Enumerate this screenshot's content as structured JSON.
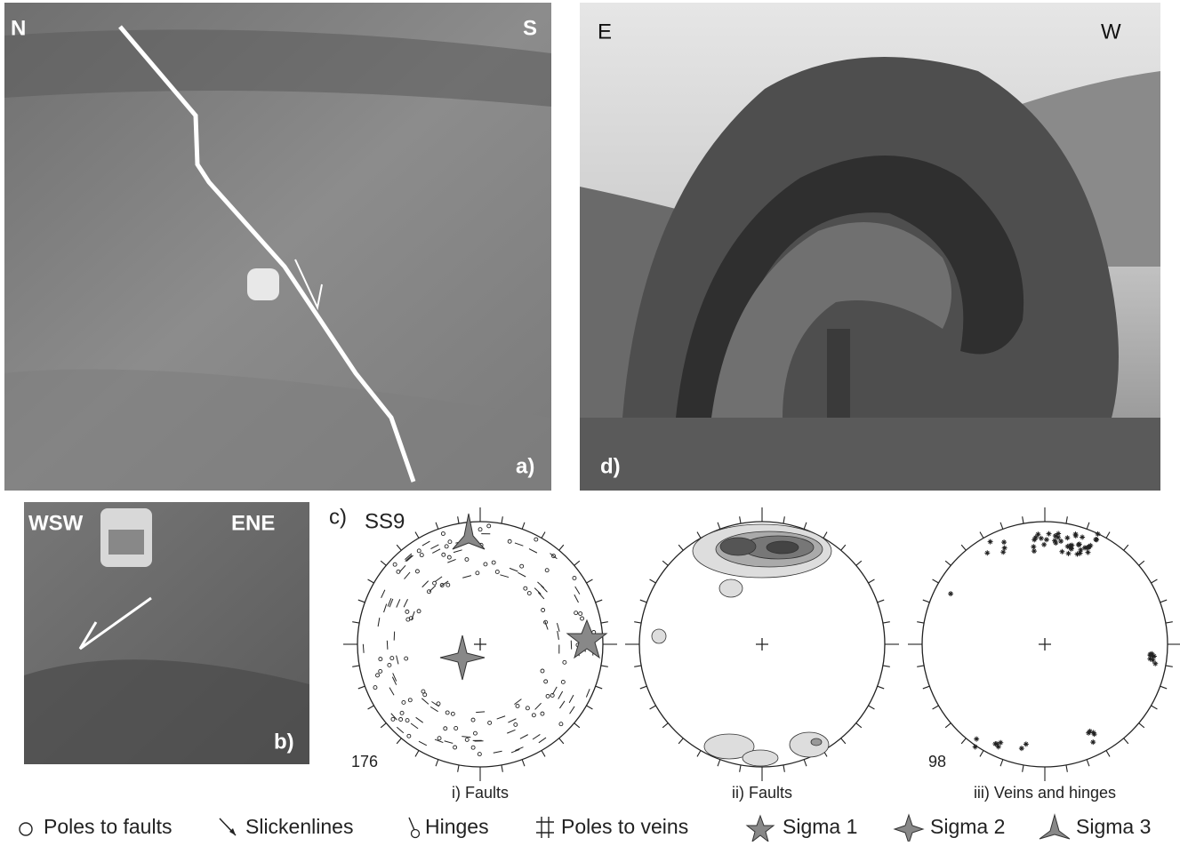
{
  "panels": {
    "a": {
      "label": "a)",
      "left": "N",
      "right": "S"
    },
    "d": {
      "label": "d)",
      "left": "E",
      "right": "W"
    },
    "b": {
      "label": "b)",
      "left": "WSW",
      "right": "ENE"
    },
    "c": {
      "label": "c)",
      "site": "SS9",
      "nets": [
        {
          "count": 176,
          "caption": "i) Faults"
        },
        {
          "caption": "ii) Faults"
        },
        {
          "count": 98,
          "caption": "iii) Veins and hinges"
        }
      ]
    }
  },
  "legend": [
    "Poles to faults",
    "Slickenlines",
    "Hinges",
    "Poles to veins",
    "Sigma 1",
    "Sigma 2",
    "Sigma 3"
  ]
}
